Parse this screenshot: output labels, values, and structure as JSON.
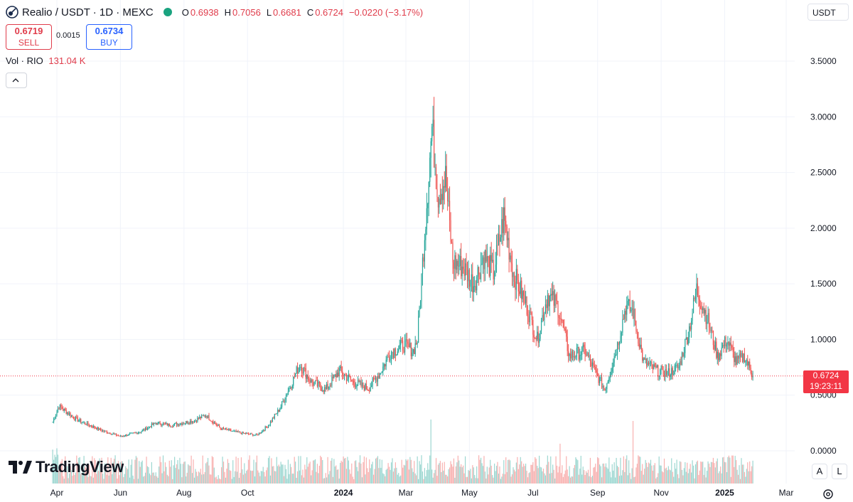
{
  "header": {
    "symbol": "Realio / USDT · 1D · MEXC",
    "open_label": "O",
    "open_value": "0.6938",
    "high_label": "H",
    "high_value": "0.7056",
    "low_label": "L",
    "low_value": "0.6681",
    "close_label": "C",
    "close_value": "0.6724",
    "change": "−0.0220 (−3.17%)"
  },
  "trade": {
    "sell_price": "0.6719",
    "sell_label": "SELL",
    "spread": "0.0015",
    "buy_price": "0.6734",
    "buy_label": "BUY"
  },
  "volume": {
    "label": "Vol · RIO",
    "value": "131.04 K"
  },
  "currency_selector": "USDT",
  "last_price": {
    "price": "0.6724",
    "countdown": "19:23:11"
  },
  "scale_buttons": {
    "auto": "A",
    "log": "L"
  },
  "brand": "TradingView",
  "colors": {
    "up": "#26a69a",
    "down": "#ef5350",
    "last_line": "#f23645"
  },
  "chart_data": {
    "type": "candlestick",
    "y_axis": {
      "ticks": [
        "3.5000",
        "3.0000",
        "2.5000",
        "2.0000",
        "1.5000",
        "1.0000",
        "0.5000",
        "0.0000"
      ],
      "tick_values": [
        3.5,
        3.0,
        2.5,
        2.0,
        1.5,
        1.0,
        0.5,
        0.0
      ],
      "range": [
        0.0,
        3.5
      ]
    },
    "x_axis": {
      "ticks": [
        "Apr",
        "Jun",
        "Aug",
        "Oct",
        "2024",
        "Mar",
        "May",
        "Jul",
        "Sep",
        "Nov",
        "2025",
        "Mar"
      ],
      "tick_dates": [
        "2023-04-01",
        "2023-06-01",
        "2023-08-01",
        "2023-10-01",
        "2024-01-01",
        "2024-03-01",
        "2024-05-01",
        "2024-07-01",
        "2024-09-01",
        "2024-11-01",
        "2025-01-01",
        "2025-03-01"
      ],
      "bold": [
        "2024",
        "2025"
      ]
    },
    "price_path": [
      [
        "2023-03-28",
        0.26
      ],
      [
        "2023-04-03",
        0.4
      ],
      [
        "2023-04-20",
        0.28
      ],
      [
        "2023-05-15",
        0.18
      ],
      [
        "2023-06-01",
        0.13
      ],
      [
        "2023-06-20",
        0.17
      ],
      [
        "2023-07-05",
        0.25
      ],
      [
        "2023-07-20",
        0.23
      ],
      [
        "2023-08-10",
        0.27
      ],
      [
        "2023-08-22",
        0.32
      ],
      [
        "2023-09-05",
        0.2
      ],
      [
        "2023-09-25",
        0.16
      ],
      [
        "2023-10-10",
        0.14
      ],
      [
        "2023-10-20",
        0.22
      ],
      [
        "2023-11-01",
        0.38
      ],
      [
        "2023-11-12",
        0.6
      ],
      [
        "2023-11-20",
        0.78
      ],
      [
        "2023-12-01",
        0.62
      ],
      [
        "2023-12-15",
        0.55
      ],
      [
        "2023-12-28",
        0.72
      ],
      [
        "2024-01-10",
        0.62
      ],
      [
        "2024-01-25",
        0.56
      ],
      [
        "2024-02-05",
        0.7
      ],
      [
        "2024-02-15",
        0.88
      ],
      [
        "2024-02-28",
        0.95
      ],
      [
        "2024-03-08",
        0.9
      ],
      [
        "2024-03-12",
        1.0
      ],
      [
        "2024-03-20",
        2.1
      ],
      [
        "2024-03-26",
        2.9
      ],
      [
        "2024-04-01",
        2.3
      ],
      [
        "2024-04-08",
        2.45
      ],
      [
        "2024-04-15",
        1.7
      ],
      [
        "2024-04-25",
        1.65
      ],
      [
        "2024-05-05",
        1.5
      ],
      [
        "2024-05-15",
        1.75
      ],
      [
        "2024-05-24",
        1.6
      ],
      [
        "2024-06-03",
        2.1
      ],
      [
        "2024-06-12",
        1.6
      ],
      [
        "2024-06-25",
        1.3
      ],
      [
        "2024-07-05",
        1.0
      ],
      [
        "2024-07-15",
        1.4
      ],
      [
        "2024-07-25",
        1.3
      ],
      [
        "2024-08-05",
        0.85
      ],
      [
        "2024-08-20",
        0.9
      ],
      [
        "2024-08-30",
        0.7
      ],
      [
        "2024-09-08",
        0.55
      ],
      [
        "2024-09-20",
        0.95
      ],
      [
        "2024-09-28",
        1.3
      ],
      [
        "2024-10-05",
        1.25
      ],
      [
        "2024-10-15",
        0.8
      ],
      [
        "2024-10-28",
        0.72
      ],
      [
        "2024-11-08",
        0.7
      ],
      [
        "2024-11-18",
        0.75
      ],
      [
        "2024-11-28",
        1.1
      ],
      [
        "2024-12-05",
        1.45
      ],
      [
        "2024-12-15",
        1.2
      ],
      [
        "2024-12-25",
        0.85
      ],
      [
        "2025-01-03",
        1.0
      ],
      [
        "2025-01-12",
        0.8
      ],
      [
        "2025-01-20",
        0.85
      ],
      [
        "2025-01-28",
        0.6724
      ]
    ],
    "last_price": 0.6724,
    "volume": "per-day bars, up/down colored, spikes near 2024-03-25, 2024-07-25 and 2024-10-05"
  }
}
